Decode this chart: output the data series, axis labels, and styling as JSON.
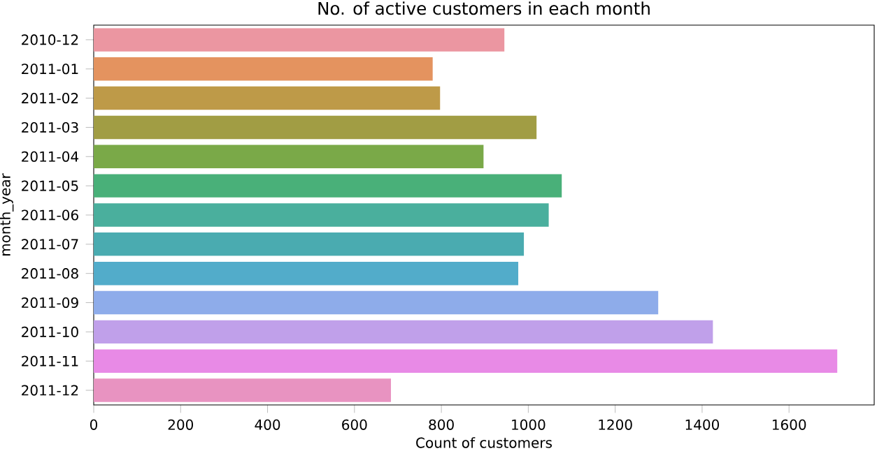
{
  "chart_data": {
    "type": "bar",
    "orientation": "horizontal",
    "title": "No. of active customers in each month",
    "xlabel": "Count of customers",
    "ylabel": "month_year",
    "categories": [
      "2010-12",
      "2011-01",
      "2011-02",
      "2011-03",
      "2011-04",
      "2011-05",
      "2011-06",
      "2011-07",
      "2011-08",
      "2011-09",
      "2011-10",
      "2011-11",
      "2011-12"
    ],
    "values": [
      945,
      780,
      797,
      1019,
      897,
      1077,
      1047,
      990,
      977,
      1299,
      1425,
      1711,
      684
    ],
    "colors": [
      "#eb96a1",
      "#e4935f",
      "#be9a48",
      "#a19d44",
      "#7aa948",
      "#49b079",
      "#4aaf9d",
      "#4aabb0",
      "#52acca",
      "#8eacea",
      "#c0a0ea",
      "#e88ae6",
      "#e893c1"
    ],
    "xlim": [
      0,
      1796
    ],
    "xticks": [
      0,
      200,
      400,
      600,
      800,
      1000,
      1200,
      1400,
      1600
    ],
    "grid": false
  }
}
